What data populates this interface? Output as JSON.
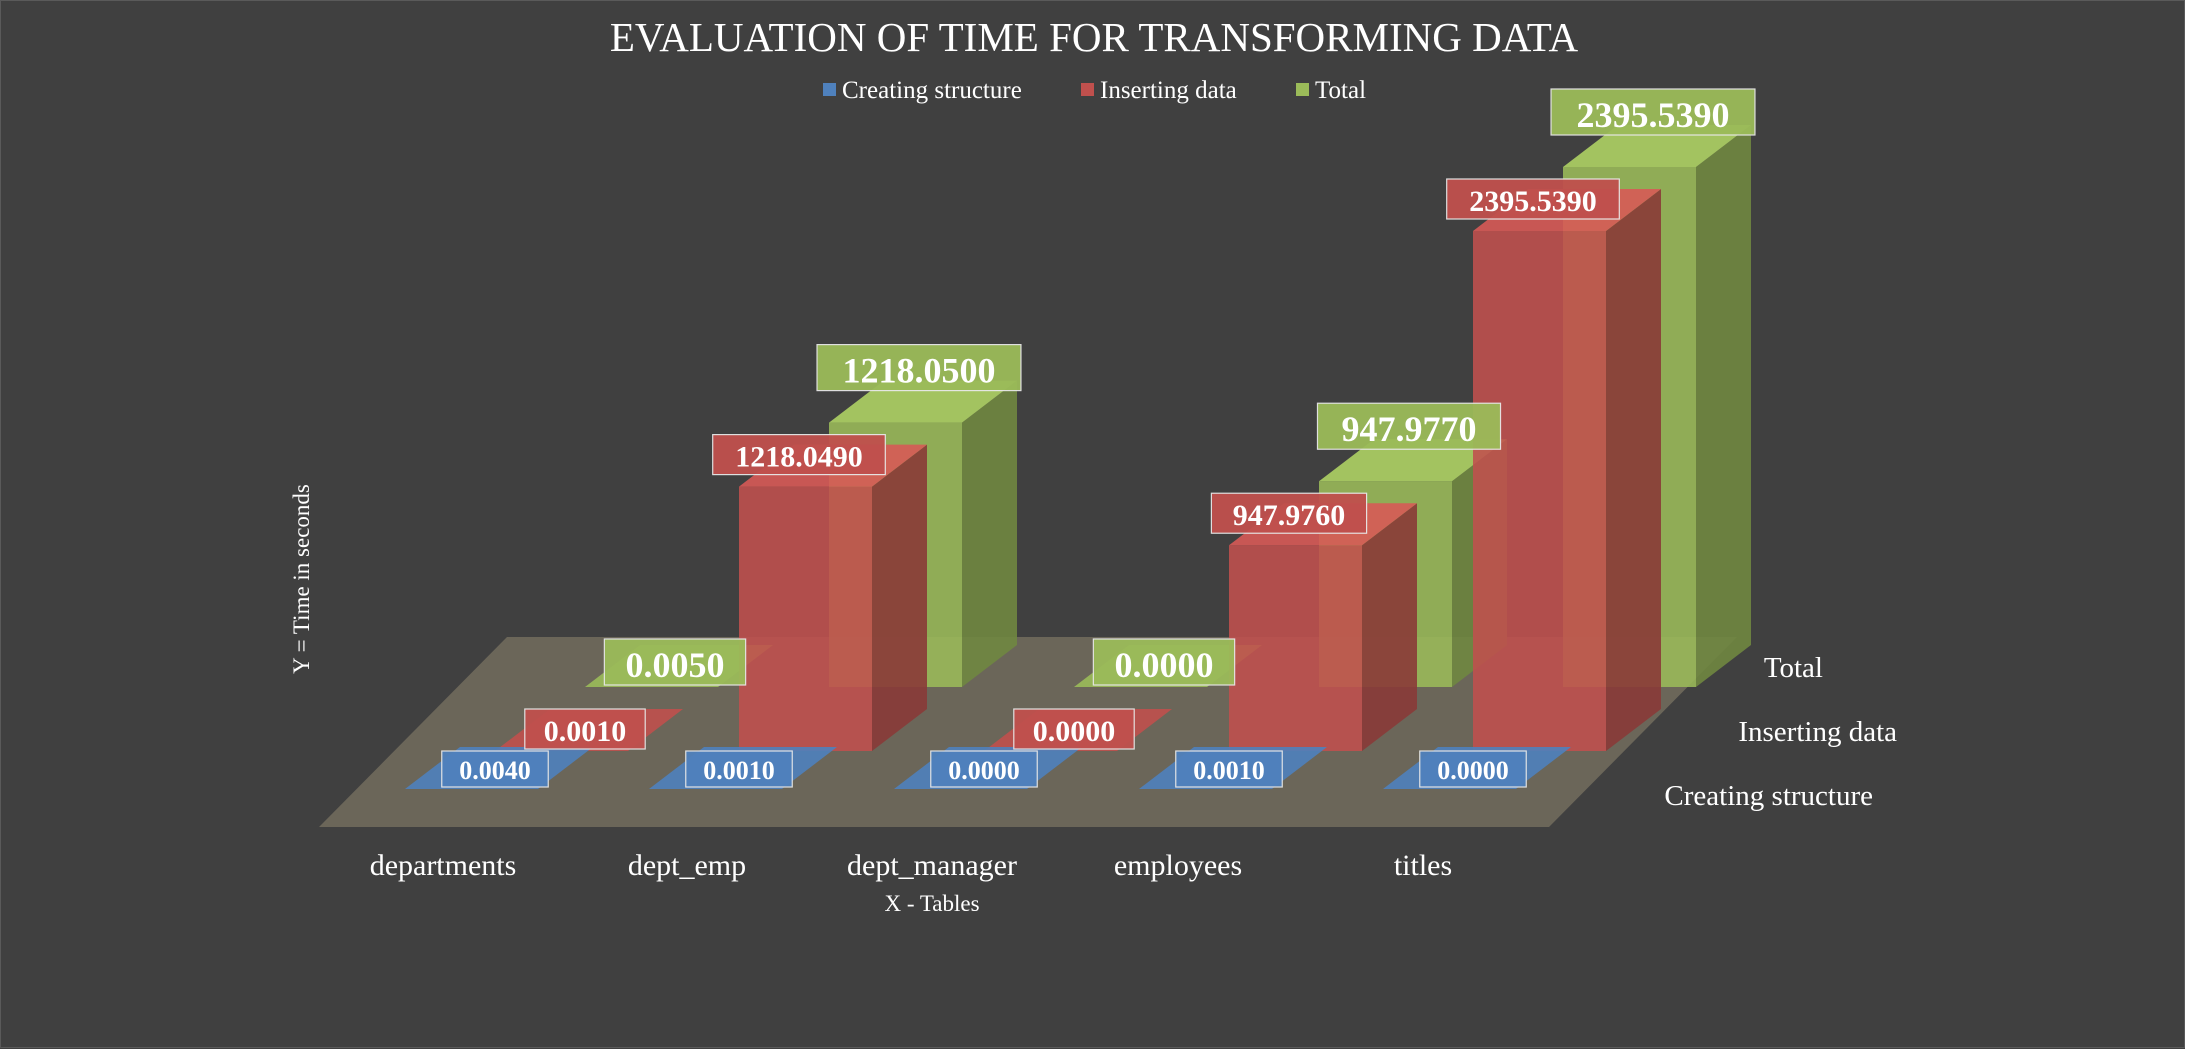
{
  "chart_data": {
    "type": "bar",
    "title": "EVALUATION OF TIME FOR TRANSFORMING DATA",
    "xlabel": "X - Tables",
    "ylabel": "Y = Time in seconds",
    "categories": [
      "departments",
      "dept_emp",
      "dept_manager",
      "employees",
      "titles"
    ],
    "series": [
      {
        "name": "Creating structure",
        "color": "#4f81bd",
        "values": [
          0.004,
          0.001,
          0.0,
          0.001,
          0.0
        ],
        "labels": [
          "0.0040",
          "0.0010",
          "0.0000",
          "0.0010",
          "0.0000"
        ]
      },
      {
        "name": "Inserting data",
        "color": "#c0504d",
        "values": [
          0.001,
          1218.049,
          0.0,
          947.976,
          2395.539
        ],
        "labels": [
          "0.0010",
          "1218.0490",
          "0.0000",
          "947.9760",
          "2395.5390"
        ]
      },
      {
        "name": "Total",
        "color": "#9bbb59",
        "values": [
          0.005,
          1218.05,
          0.0,
          947.977,
          2395.539
        ],
        "labels": [
          "0.0050",
          "1218.0500",
          "0.0000",
          "947.9770",
          "2395.5390"
        ]
      }
    ],
    "ylim": [
      0,
      2395.539
    ],
    "legend_position": "top",
    "style": "3d-column",
    "grid": false,
    "data_labels": true
  }
}
